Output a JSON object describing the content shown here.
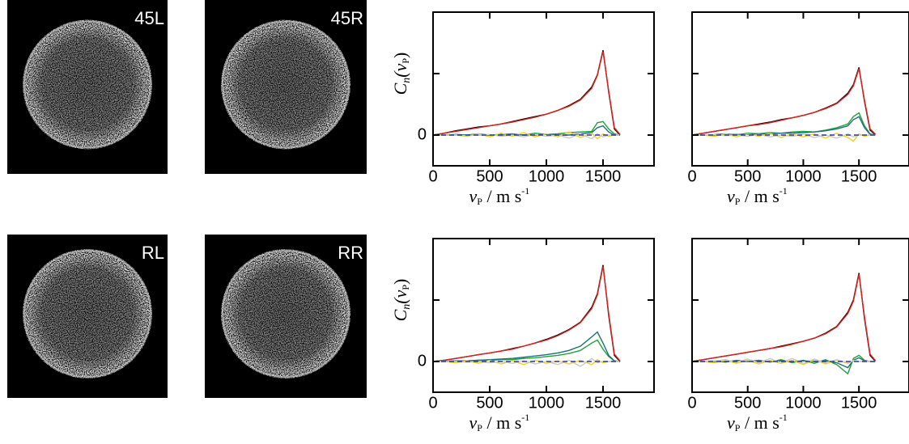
{
  "panels": [
    {
      "label": "45L"
    },
    {
      "label": "45R"
    },
    {
      "label": "RL"
    },
    {
      "label": "RR"
    }
  ],
  "chart_data": [
    {
      "type": "line",
      "xlabel": [
        "v",
        "P",
        " / m s",
        "-1"
      ],
      "ylabel": [
        "C",
        "n",
        "(v",
        "P",
        ")"
      ],
      "x": [
        0,
        100,
        200,
        300,
        400,
        500,
        600,
        700,
        800,
        900,
        1000,
        1100,
        1200,
        1300,
        1400,
        1450,
        1500,
        1550,
        1600,
        1650
      ],
      "xlim": [
        0,
        1950
      ],
      "xticks": [
        0,
        500,
        1000,
        1500
      ],
      "ylim": [
        -0.5,
        2
      ],
      "yticks": [
        0
      ],
      "yticks_unlabeled": [
        1,
        2
      ],
      "series": [
        {
          "color": "#000000",
          "values": [
            0,
            0.03,
            0.07,
            0.1,
            0.13,
            0.15,
            0.18,
            0.22,
            0.26,
            0.3,
            0.34,
            0.4,
            0.48,
            0.58,
            0.78,
            0.98,
            1.38,
            0.7,
            0.1,
            0
          ]
        },
        {
          "color": "#e0201b",
          "values": [
            0,
            0.03,
            0.06,
            0.09,
            0.12,
            0.15,
            0.18,
            0.21,
            0.25,
            0.29,
            0.34,
            0.4,
            0.47,
            0.57,
            0.76,
            0.97,
            1.36,
            0.72,
            0.12,
            0.01
          ]
        },
        {
          "color": "#22a03a",
          "values": [
            0,
            0,
            0.01,
            0,
            0.02,
            0,
            0.01,
            0.02,
            0,
            0.03,
            0.01,
            0.02,
            0.04,
            0.05,
            0.06,
            0.2,
            0.22,
            0.1,
            0.02,
            0
          ]
        },
        {
          "color": "#1f6f7a",
          "values": [
            0,
            0,
            0,
            0,
            0,
            0,
            0,
            0.01,
            0,
            0,
            0.01,
            0,
            0,
            0.02,
            0.04,
            0.12,
            0.15,
            0.05,
            0,
            0
          ]
        },
        {
          "color": "#f0d020",
          "values": [
            0,
            0,
            0,
            -0.02,
            0.02,
            -0.03,
            0.03,
            -0.02,
            0.04,
            -0.03,
            0.02,
            -0.03,
            0.05,
            -0.04,
            0.03,
            -0.06,
            0.02,
            -0.02,
            0,
            0
          ]
        },
        {
          "color": "#c8c8c8",
          "values": [
            0,
            0,
            0,
            -0.01,
            0,
            0.01,
            -0.02,
            0,
            -0.03,
            0.01,
            -0.02,
            0,
            -0.05,
            0.02,
            -0.06,
            0.02,
            -0.03,
            0,
            0,
            0
          ]
        },
        {
          "color": "#2b3d9a",
          "linestyle": "dashed",
          "values": [
            0,
            0,
            0,
            0,
            0,
            0,
            0,
            0,
            0,
            0,
            0,
            0,
            0,
            0,
            0,
            0,
            0,
            0,
            0,
            0
          ]
        }
      ]
    },
    {
      "type": "line",
      "x": [
        0,
        100,
        200,
        300,
        400,
        500,
        600,
        700,
        800,
        900,
        1000,
        1100,
        1200,
        1300,
        1400,
        1450,
        1500,
        1550,
        1600,
        1650
      ],
      "xlabel": [
        "v",
        "P",
        " / m s",
        "-1"
      ],
      "xlim": [
        0,
        1950
      ],
      "xticks": [
        0,
        500,
        1000,
        1500
      ],
      "ylim": [
        -0.5,
        2
      ],
      "yticks_unlabeled": [
        0,
        1,
        2
      ],
      "series": [
        {
          "color": "#000000",
          "values": [
            0,
            0.03,
            0.06,
            0.09,
            0.12,
            0.15,
            0.18,
            0.21,
            0.25,
            0.28,
            0.32,
            0.37,
            0.44,
            0.52,
            0.68,
            0.82,
            1.1,
            0.55,
            0.08,
            0
          ]
        },
        {
          "color": "#e0201b",
          "values": [
            0,
            0.03,
            0.06,
            0.09,
            0.12,
            0.15,
            0.17,
            0.2,
            0.24,
            0.28,
            0.32,
            0.37,
            0.43,
            0.51,
            0.66,
            0.8,
            1.08,
            0.57,
            0.1,
            0.01
          ]
        },
        {
          "color": "#22a03a",
          "values": [
            0,
            0,
            0.01,
            0.02,
            0,
            0.03,
            0.02,
            0.04,
            0.03,
            0.05,
            0.06,
            0.05,
            0.08,
            0.12,
            0.18,
            0.3,
            0.36,
            0.15,
            0.02,
            0
          ]
        },
        {
          "color": "#1f6f7a",
          "values": [
            0,
            0,
            0,
            0.01,
            0.01,
            0.01,
            0.02,
            0.02,
            0.03,
            0.03,
            0.04,
            0.05,
            0.07,
            0.1,
            0.15,
            0.25,
            0.3,
            0.12,
            0.01,
            0
          ]
        },
        {
          "color": "#f0d020",
          "values": [
            0,
            0,
            -0.02,
            0.02,
            -0.03,
            0.02,
            -0.02,
            0.03,
            -0.04,
            0.02,
            -0.03,
            0.02,
            -0.05,
            0.03,
            -0.04,
            -0.1,
            0.02,
            -0.02,
            0,
            0
          ]
        },
        {
          "color": "#c8c8c8",
          "values": [
            0,
            0,
            0.01,
            -0.01,
            0,
            -0.02,
            0.01,
            -0.03,
            0,
            -0.02,
            0.01,
            -0.04,
            0,
            -0.05,
            0.02,
            -0.03,
            0,
            0,
            0,
            0
          ]
        },
        {
          "color": "#2b3d9a",
          "linestyle": "dashed",
          "values": [
            0,
            0,
            0,
            0,
            0,
            0,
            0,
            0,
            0,
            0,
            0,
            0,
            0,
            0,
            0,
            0,
            0,
            0,
            0,
            0
          ]
        }
      ]
    },
    {
      "type": "line",
      "xlabel": [
        "v",
        "P",
        " / m s",
        "-1"
      ],
      "ylabel": [
        "C",
        "n",
        "(v",
        "P",
        ")"
      ],
      "x": [
        0,
        100,
        200,
        300,
        400,
        500,
        600,
        700,
        800,
        900,
        1000,
        1100,
        1200,
        1300,
        1400,
        1450,
        1500,
        1550,
        1600,
        1650
      ],
      "xlim": [
        0,
        1950
      ],
      "xticks": [
        0,
        500,
        1000,
        1500
      ],
      "ylim": [
        -0.5,
        2
      ],
      "yticks": [
        0
      ],
      "yticks_unlabeled": [
        1,
        2
      ],
      "series": [
        {
          "color": "#000000",
          "values": [
            0,
            0.02,
            0.05,
            0.08,
            0.11,
            0.14,
            0.17,
            0.21,
            0.25,
            0.3,
            0.36,
            0.43,
            0.52,
            0.64,
            0.88,
            1.1,
            1.57,
            0.75,
            0.1,
            0
          ]
        },
        {
          "color": "#e0201b",
          "values": [
            0,
            0.02,
            0.05,
            0.08,
            0.11,
            0.14,
            0.17,
            0.2,
            0.25,
            0.3,
            0.35,
            0.42,
            0.51,
            0.63,
            0.86,
            1.08,
            1.55,
            0.78,
            0.12,
            0.01
          ]
        },
        {
          "color": "#22a03a",
          "values": [
            0,
            0,
            0.01,
            0.01,
            0.02,
            0.02,
            0.03,
            0.03,
            0.05,
            0.06,
            0.08,
            0.1,
            0.13,
            0.18,
            0.3,
            0.35,
            0.2,
            0.08,
            0.01,
            0
          ]
        },
        {
          "color": "#1f6f7a",
          "values": [
            0,
            0,
            0.01,
            0.01,
            0.02,
            0.03,
            0.04,
            0.05,
            0.07,
            0.09,
            0.11,
            0.14,
            0.18,
            0.25,
            0.4,
            0.48,
            0.3,
            0.1,
            0.01,
            0
          ]
        },
        {
          "color": "#f0d020",
          "values": [
            0,
            0,
            -0.02,
            0.01,
            -0.03,
            0.02,
            -0.04,
            0.01,
            -0.05,
            0.02,
            -0.03,
            0.01,
            -0.04,
            0.02,
            -0.05,
            0.03,
            -0.02,
            0,
            0,
            0
          ]
        },
        {
          "color": "#c8c8c8",
          "values": [
            0,
            0,
            0,
            -0.01,
            0,
            -0.02,
            0,
            -0.03,
            0.01,
            -0.04,
            0,
            -0.05,
            0.02,
            -0.08,
            0.05,
            -0.02,
            0,
            0,
            0,
            0
          ]
        },
        {
          "color": "#2b3d9a",
          "linestyle": "dashed",
          "values": [
            0,
            0,
            0,
            0,
            0,
            0,
            0,
            0,
            0,
            0,
            0,
            0,
            0,
            0,
            0,
            0,
            0,
            0,
            0,
            0
          ]
        }
      ]
    },
    {
      "type": "line",
      "x": [
        0,
        100,
        200,
        300,
        400,
        500,
        600,
        700,
        800,
        900,
        1000,
        1100,
        1200,
        1300,
        1400,
        1450,
        1500,
        1550,
        1600,
        1650
      ],
      "xlabel": [
        "v",
        "P",
        " / m s",
        "-1"
      ],
      "xlim": [
        0,
        1950
      ],
      "xticks": [
        0,
        500,
        1000,
        1500
      ],
      "ylim": [
        -0.5,
        2
      ],
      "yticks_unlabeled": [
        0,
        1,
        2
      ],
      "series": [
        {
          "color": "#000000",
          "values": [
            0,
            0.03,
            0.06,
            0.09,
            0.12,
            0.15,
            0.18,
            0.21,
            0.25,
            0.29,
            0.33,
            0.38,
            0.46,
            0.57,
            0.8,
            1.0,
            1.44,
            0.7,
            0.1,
            0
          ]
        },
        {
          "color": "#e0201b",
          "values": [
            0,
            0.03,
            0.06,
            0.09,
            0.12,
            0.15,
            0.18,
            0.21,
            0.24,
            0.28,
            0.33,
            0.38,
            0.45,
            0.56,
            0.78,
            0.98,
            1.42,
            0.73,
            0.12,
            0.01
          ]
        },
        {
          "color": "#22a03a",
          "values": [
            0,
            0,
            0.01,
            -0.01,
            0.02,
            0,
            0.02,
            -0.01,
            0.03,
            -0.02,
            0.02,
            -0.03,
            0.03,
            -0.05,
            -0.2,
            0.05,
            0.1,
            0.02,
            0,
            0
          ]
        },
        {
          "color": "#1f6f7a",
          "values": [
            0,
            0,
            0,
            0,
            0.01,
            0,
            0.01,
            0,
            0.01,
            0,
            0.01,
            0,
            0.01,
            -0.02,
            -0.1,
            0.02,
            0.06,
            0.01,
            0,
            0
          ]
        },
        {
          "color": "#f0d020",
          "values": [
            0,
            0,
            -0.02,
            0.02,
            -0.03,
            0.02,
            -0.04,
            0.02,
            -0.03,
            0.02,
            -0.05,
            0.03,
            -0.04,
            0.02,
            -0.03,
            0.02,
            0,
            0,
            0,
            0
          ]
        },
        {
          "color": "#c8c8c8",
          "values": [
            0,
            0,
            0.01,
            0.03,
            -0.01,
            0.04,
            -0.02,
            0.05,
            -0.02,
            0.05,
            -0.03,
            0.04,
            -0.02,
            0.03,
            -0.02,
            0.01,
            0,
            0,
            0,
            0
          ]
        },
        {
          "color": "#2b3d9a",
          "linestyle": "dashed",
          "values": [
            0,
            0,
            0,
            0,
            0,
            0,
            0,
            0,
            0,
            0,
            0,
            0,
            0,
            0,
            0,
            0,
            0,
            0,
            0,
            0
          ]
        }
      ]
    }
  ]
}
